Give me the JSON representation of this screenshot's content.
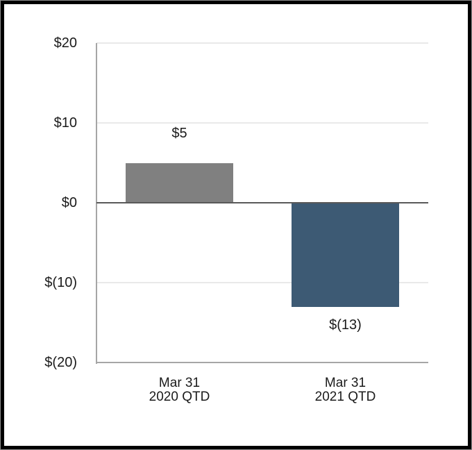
{
  "window": {
    "background": "#ffffff",
    "frame_color": "#000000",
    "outer_edge_color": "#8f8f8f"
  },
  "chart_data": {
    "type": "bar",
    "title": "",
    "categories": [
      [
        "Mar 31",
        "2020 QTD"
      ],
      [
        "Mar 31",
        "2021 QTD"
      ]
    ],
    "values": [
      5,
      -13
    ],
    "value_labels": [
      "$5",
      "$(13)"
    ],
    "bar_colors": [
      "#808080",
      "#3d5a74"
    ],
    "ylim": [
      -20,
      20
    ],
    "y_ticks": [
      {
        "value": 20,
        "label": "$20"
      },
      {
        "value": 10,
        "label": "$10"
      },
      {
        "value": 0,
        "label": "$0"
      },
      {
        "value": -10,
        "label": "$(10)"
      },
      {
        "value": -20,
        "label": "$(20)"
      }
    ],
    "grid": "horizontal",
    "legend": "none",
    "gridline_color": "#e9e9e9",
    "zero_line_color": "#595959",
    "axis_color": "#a6a6a6",
    "text_color": "#1a1a1a"
  }
}
